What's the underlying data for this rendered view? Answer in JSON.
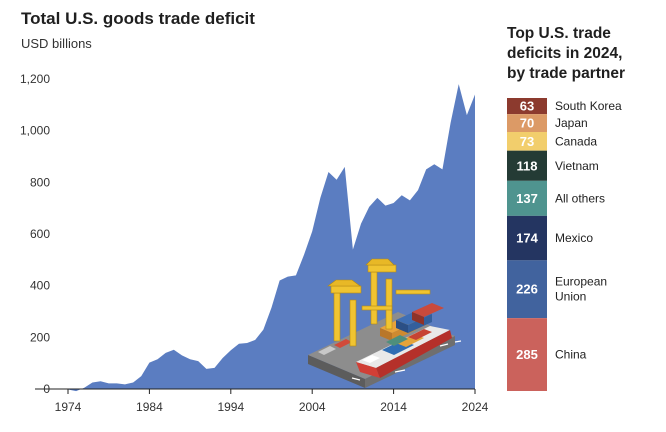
{
  "chart_data": [
    {
      "type": "area",
      "title": "Total U.S. goods trade deficit",
      "ylabel": "USD billions",
      "xlabel": "",
      "ylim": [
        0,
        1250
      ],
      "xlim": [
        1974,
        2024
      ],
      "grid": false,
      "yticks": [
        "0",
        "200",
        "400",
        "600",
        "800",
        "1,000",
        "1,200"
      ],
      "ytick_values": [
        0,
        200,
        400,
        600,
        800,
        1000,
        1200
      ],
      "xticks": [
        "1974",
        "1984",
        "1994",
        "2004",
        "2014",
        "2024"
      ],
      "xtick_values": [
        1974,
        1984,
        1994,
        2004,
        2014,
        2024
      ],
      "fill_color": "#5b7dc1",
      "x": [
        1974,
        1975,
        1976,
        1977,
        1978,
        1979,
        1980,
        1981,
        1982,
        1983,
        1984,
        1985,
        1986,
        1987,
        1988,
        1989,
        1990,
        1991,
        1992,
        1993,
        1994,
        1995,
        1996,
        1997,
        1998,
        1999,
        2000,
        2001,
        2002,
        2003,
        2004,
        2005,
        2006,
        2007,
        2008,
        2009,
        2010,
        2011,
        2012,
        2013,
        2014,
        2015,
        2016,
        2017,
        2018,
        2019,
        2020,
        2021,
        2022,
        2023,
        2024
      ],
      "values": [
        -2,
        -8,
        5,
        25,
        30,
        22,
        22,
        18,
        25,
        50,
        102,
        115,
        140,
        152,
        130,
        115,
        108,
        78,
        82,
        120,
        150,
        175,
        178,
        190,
        230,
        315,
        420,
        435,
        440,
        520,
        610,
        740,
        840,
        810,
        860,
        540,
        640,
        705,
        740,
        710,
        720,
        750,
        730,
        770,
        850,
        870,
        850,
        1030,
        1180,
        1060,
        1140
      ]
    },
    {
      "type": "bar",
      "stacked": true,
      "title": "Top U.S. trade deficits in 2024, by trade partner",
      "title_lines": [
        "Top U.S. trade",
        "deficits in 2024,",
        "by trade partner"
      ],
      "segments": [
        {
          "name": "South Korea",
          "label_lines": [
            "South Korea"
          ],
          "value": 63,
          "color": "#8c3a2e"
        },
        {
          "name": "Japan",
          "label_lines": [
            "Japan"
          ],
          "value": 70,
          "color": "#dc9a66"
        },
        {
          "name": "Canada",
          "label_lines": [
            "Canada"
          ],
          "value": 73,
          "color": "#f2ce6c"
        },
        {
          "name": "Vietnam",
          "label_lines": [
            "Vietnam"
          ],
          "value": 118,
          "color": "#243b35"
        },
        {
          "name": "All others",
          "label_lines": [
            "All others"
          ],
          "value": 137,
          "color": "#4f948f"
        },
        {
          "name": "Mexico",
          "label_lines": [
            "Mexico"
          ],
          "value": 174,
          "color": "#243561"
        },
        {
          "name": "European Union",
          "label_lines": [
            "European",
            "Union"
          ],
          "value": 226,
          "color": "#41639e"
        },
        {
          "name": "China",
          "label_lines": [
            "China"
          ],
          "value": 285,
          "color": "#cb625c"
        }
      ]
    }
  ]
}
